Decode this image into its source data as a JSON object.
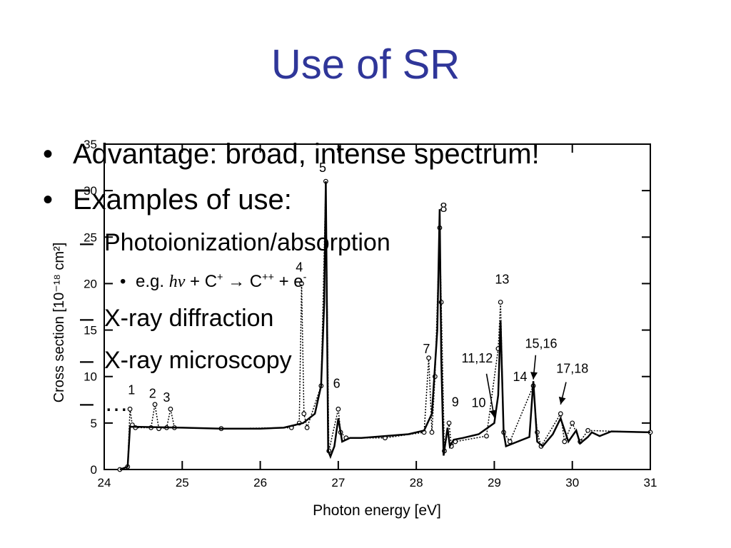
{
  "slide": {
    "title": "Use of SR",
    "bullets": [
      {
        "level": 1,
        "marker": "•",
        "text": "Advantage: broad, intense spectrum!"
      },
      {
        "level": 1,
        "marker": "•",
        "text": "Examples of use:"
      },
      {
        "level": 2,
        "marker": "–",
        "text": "Photoionization/absorption"
      },
      {
        "level": 3,
        "marker": "•",
        "text_prefix": "e.g. ",
        "italic": "hν",
        "text_mid": " + C",
        "sup1": "+",
        "arrow": " → C",
        "sup2": "++",
        "text_end": " + e",
        "sup3": "-"
      },
      {
        "level": 2,
        "marker": "–",
        "text": "X-ray diffraction"
      },
      {
        "level": 2,
        "marker": "–",
        "text": "X-ray microscopy"
      },
      {
        "level": 2,
        "marker": "–",
        "text": "…"
      }
    ]
  },
  "chart_data": {
    "type": "line",
    "xlabel": "Photon energy [eV]",
    "ylabel": "Cross section [10⁻¹⁸ cm²]",
    "xlim": [
      24,
      31
    ],
    "ylim": [
      0,
      35
    ],
    "xticks": [
      24,
      25,
      26,
      27,
      28,
      29,
      30,
      31
    ],
    "yticks": [
      0,
      5,
      10,
      15,
      20,
      25,
      30,
      35
    ],
    "grid": false,
    "series": [
      {
        "style": "solid",
        "x": [
          24.2,
          24.3,
          24.33,
          24.4,
          25.0,
          25.5,
          26.0,
          26.3,
          26.55,
          26.7,
          26.78,
          26.82,
          26.84,
          26.87,
          26.9,
          26.95,
          27.0,
          27.05,
          27.15,
          27.3,
          27.6,
          27.9,
          28.1,
          28.2,
          28.27,
          28.3,
          28.32,
          28.35,
          28.4,
          28.43,
          28.48,
          28.6,
          28.8,
          29.0,
          29.05,
          29.08,
          29.12,
          29.15,
          29.3,
          29.45,
          29.5,
          29.55,
          29.62,
          29.75,
          29.85,
          29.95,
          30.05,
          30.1,
          30.2,
          30.25,
          30.35,
          30.5,
          31.0
        ],
        "y": [
          0.0,
          0.3,
          4.6,
          4.6,
          4.5,
          4.4,
          4.4,
          4.5,
          5.0,
          6.0,
          9.0,
          18.0,
          31.0,
          2.0,
          1.4,
          2.5,
          5.5,
          3.0,
          3.4,
          3.4,
          3.6,
          3.8,
          4.2,
          6.0,
          15.0,
          28.0,
          12.0,
          1.5,
          4.5,
          2.5,
          3.2,
          3.4,
          3.8,
          5.0,
          8.0,
          16.0,
          4.0,
          2.5,
          3.0,
          3.5,
          9.5,
          3.0,
          2.5,
          3.8,
          5.5,
          3.0,
          4.2,
          2.8,
          3.5,
          4.0,
          3.6,
          4.1,
          4.0
        ]
      },
      {
        "style": "dotted",
        "x": [
          24.2,
          24.3,
          24.33,
          24.36,
          24.4,
          24.6,
          24.65,
          24.7,
          24.8,
          24.85,
          24.9,
          25.5,
          26.4,
          26.5,
          26.53,
          26.56,
          26.6,
          26.78,
          26.84,
          26.88,
          27.0,
          27.03,
          27.1,
          27.6,
          28.1,
          28.16,
          28.2,
          28.24,
          28.3,
          28.32,
          28.36,
          28.42,
          28.45,
          28.5,
          28.9,
          29.05,
          29.08,
          29.12,
          29.2,
          29.5,
          29.55,
          29.6,
          29.85,
          29.9,
          30.0,
          30.1,
          30.2,
          31.0
        ],
        "y": [
          0.0,
          0.3,
          6.5,
          4.8,
          4.5,
          4.5,
          7.0,
          4.4,
          4.5,
          6.5,
          4.5,
          4.4,
          4.5,
          5.0,
          20.0,
          6.0,
          4.5,
          9.0,
          31.0,
          2.0,
          6.5,
          4.0,
          3.4,
          3.4,
          4.0,
          12.0,
          4.0,
          10.0,
          26.0,
          18.0,
          2.0,
          5.0,
          2.5,
          3.0,
          3.6,
          13.0,
          18.0,
          4.0,
          3.0,
          9.0,
          4.0,
          2.5,
          6.0,
          3.0,
          5.0,
          3.0,
          4.2,
          4.0
        ]
      }
    ],
    "annotations": [
      {
        "text": "1",
        "x": 24.35,
        "y": 8.1
      },
      {
        "text": "2",
        "x": 24.62,
        "y": 7.7
      },
      {
        "text": "3",
        "x": 24.8,
        "y": 7.3
      },
      {
        "text": "4",
        "x": 26.5,
        "y": 21.3
      },
      {
        "text": "5",
        "x": 26.8,
        "y": 32.0
      },
      {
        "text": "6",
        "x": 26.98,
        "y": 8.8
      },
      {
        "text": "7",
        "x": 28.13,
        "y": 12.5
      },
      {
        "text": "8",
        "x": 28.35,
        "y": 27.7
      },
      {
        "text": "9",
        "x": 28.5,
        "y": 6.8
      },
      {
        "text": "10",
        "x": 28.8,
        "y": 6.7
      },
      {
        "text": "11,12",
        "x": 28.78,
        "y": 11.5
      },
      {
        "text": "13",
        "x": 29.1,
        "y": 20.0
      },
      {
        "text": "14",
        "x": 29.33,
        "y": 9.5
      },
      {
        "text": "15,16",
        "x": 29.6,
        "y": 13.1
      },
      {
        "text": "17,18",
        "x": 30.0,
        "y": 10.4
      }
    ],
    "arrows": [
      {
        "from": [
          28.9,
          10.3
        ],
        "to": [
          29.0,
          5.6
        ]
      },
      {
        "from": [
          29.53,
          12.3
        ],
        "to": [
          29.5,
          9.7
        ]
      },
      {
        "from": [
          29.92,
          9.4
        ],
        "to": [
          29.85,
          7.0
        ]
      }
    ],
    "colors": {
      "title": "#2f3699",
      "ink": "#000000"
    }
  }
}
